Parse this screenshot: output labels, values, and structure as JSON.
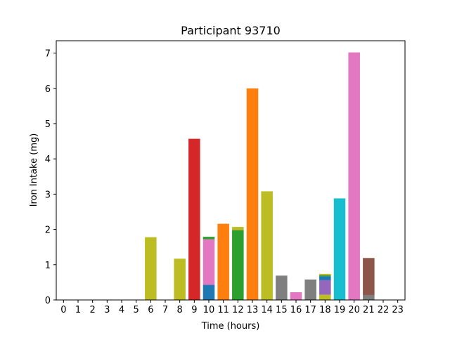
{
  "chart_data": {
    "type": "bar",
    "stacked": true,
    "title": "Participant 93710",
    "xlabel": "Time (hours)",
    "ylabel": "Iron Intake (mg)",
    "xlim": [
      -0.5,
      23.5
    ],
    "ylim": [
      0,
      7.35
    ],
    "xticks": [
      "0",
      "1",
      "2",
      "3",
      "4",
      "5",
      "6",
      "7",
      "8",
      "9",
      "10",
      "11",
      "12",
      "13",
      "14",
      "15",
      "16",
      "17",
      "18",
      "19",
      "20",
      "21",
      "22",
      "23"
    ],
    "yticks": [
      "0",
      "1",
      "2",
      "3",
      "4",
      "5",
      "6",
      "7"
    ],
    "grid": false,
    "legend": "none",
    "bars": [
      {
        "hour": 6,
        "segments": [
          {
            "value": 1.78,
            "color": "#bcbd22"
          }
        ]
      },
      {
        "hour": 8,
        "segments": [
          {
            "value": 1.17,
            "color": "#bcbd22"
          }
        ]
      },
      {
        "hour": 9,
        "segments": [
          {
            "value": 4.57,
            "color": "#d62728"
          }
        ]
      },
      {
        "hour": 10,
        "segments": [
          {
            "value": 0.43,
            "color": "#1f77b4"
          },
          {
            "value": 1.29,
            "color": "#e377c2"
          },
          {
            "value": 0.07,
            "color": "#2ca02c"
          }
        ]
      },
      {
        "hour": 11,
        "segments": [
          {
            "value": 2.16,
            "color": "#ff7f0e"
          }
        ]
      },
      {
        "hour": 12,
        "segments": [
          {
            "value": 1.98,
            "color": "#2ca02c"
          },
          {
            "value": 0.09,
            "color": "#bcbd22"
          }
        ]
      },
      {
        "hour": 13,
        "segments": [
          {
            "value": 6.0,
            "color": "#ff7f0e"
          }
        ]
      },
      {
        "hour": 14,
        "segments": [
          {
            "value": 3.08,
            "color": "#bcbd22"
          }
        ]
      },
      {
        "hour": 15,
        "segments": [
          {
            "value": 0.69,
            "color": "#7f7f7f"
          }
        ]
      },
      {
        "hour": 16,
        "segments": [
          {
            "value": 0.22,
            "color": "#e377c2"
          }
        ]
      },
      {
        "hour": 17,
        "segments": [
          {
            "value": 0.58,
            "color": "#7f7f7f"
          }
        ]
      },
      {
        "hour": 18,
        "segments": [
          {
            "value": 0.15,
            "color": "#bcbd22"
          },
          {
            "value": 0.41,
            "color": "#9467bd"
          },
          {
            "value": 0.11,
            "color": "#1f77b4"
          },
          {
            "value": 0.03,
            "color": "#2ca02c"
          },
          {
            "value": 0.04,
            "color": "#bcbd22"
          }
        ]
      },
      {
        "hour": 19,
        "segments": [
          {
            "value": 2.88,
            "color": "#17becf"
          }
        ]
      },
      {
        "hour": 20,
        "segments": [
          {
            "value": 7.02,
            "color": "#e377c2"
          }
        ]
      },
      {
        "hour": 21,
        "segments": [
          {
            "value": 0.14,
            "color": "#7f7f7f"
          },
          {
            "value": 1.05,
            "color": "#8c564b"
          }
        ]
      }
    ]
  }
}
